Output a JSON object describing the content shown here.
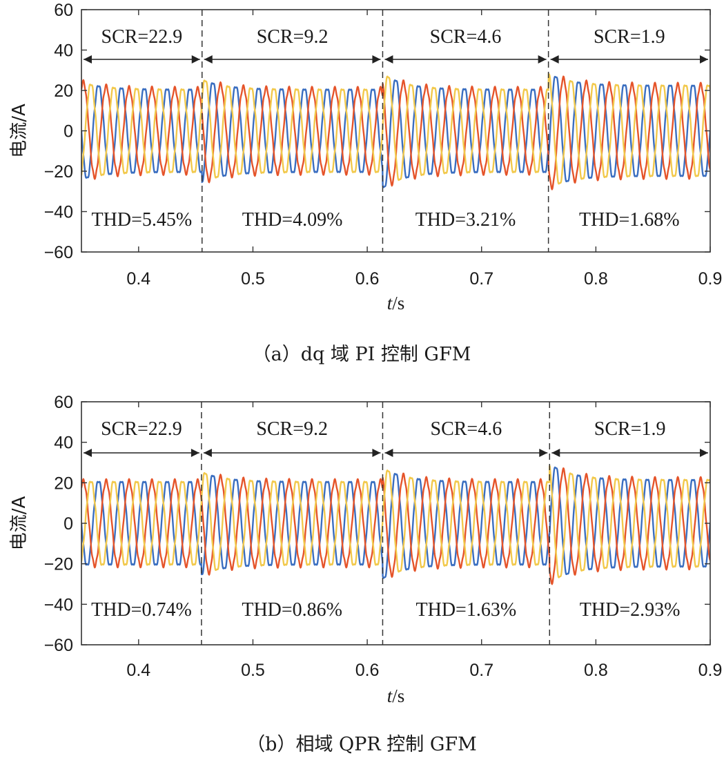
{
  "chart_data": [
    {
      "type": "line",
      "caption": "（a）dq 域 PI 控制 GFM",
      "xlabel_var": "t",
      "xlabel_unit": "/s",
      "ylabel": "电流/A",
      "xlim": [
        0.35,
        0.9
      ],
      "ylim": [
        -60,
        60
      ],
      "xticks": [
        0.4,
        0.5,
        0.6,
        0.7,
        0.8,
        0.9
      ],
      "xtick_labels": [
        "0.4",
        "0.5",
        "0.6",
        "0.7",
        "0.8",
        "0.9"
      ],
      "yticks": [
        60,
        40,
        20,
        0,
        -20,
        -40,
        -60
      ],
      "ytick_labels": [
        "60",
        "40",
        "20",
        "0",
        "−20",
        "−40",
        "−60"
      ],
      "boundaries": [
        0.4555,
        0.6135,
        0.7585
      ],
      "series": [
        {
          "name": "phase-blue",
          "color": "#3a6ec0",
          "phase_deg": 0
        },
        {
          "name": "phase-red",
          "color": "#e5542a",
          "phase_deg": -120
        },
        {
          "name": "phase-yellow",
          "color": "#f2c94c",
          "phase_deg": 120
        }
      ],
      "frequency_hz": 50,
      "segments": [
        {
          "scr_label": "SCR=22.9",
          "thd_label": "THD=5.45%",
          "x_start": 0.35,
          "x_end": 0.4555,
          "amplitude": 21,
          "transient_peak": 6
        },
        {
          "scr_label": "SCR=9.2",
          "thd_label": "THD=4.09%",
          "x_start": 0.4555,
          "x_end": 0.6135,
          "amplitude": 21,
          "transient_peak": 5
        },
        {
          "scr_label": "SCR=4.6",
          "thd_label": "THD=3.21%",
          "x_start": 0.6135,
          "x_end": 0.7585,
          "amplitude": 21,
          "transient_peak": 8
        },
        {
          "scr_label": "SCR=1.9",
          "thd_label": "THD=1.68%",
          "x_start": 0.7585,
          "x_end": 0.9,
          "amplitude": 23,
          "transient_peak": 6
        }
      ]
    },
    {
      "type": "line",
      "caption": "（b）相域 QPR 控制 GFM",
      "xlabel_var": "t",
      "xlabel_unit": "/s",
      "ylabel": "电流/A",
      "xlim": [
        0.35,
        0.9
      ],
      "ylim": [
        -60,
        60
      ],
      "xticks": [
        0.4,
        0.5,
        0.6,
        0.7,
        0.8,
        0.9
      ],
      "xtick_labels": [
        "0.4",
        "0.5",
        "0.6",
        "0.7",
        "0.8",
        "0.9"
      ],
      "yticks": [
        60,
        40,
        20,
        0,
        -20,
        -40,
        -60
      ],
      "ytick_labels": [
        "60",
        "40",
        "20",
        "0",
        "−20",
        "−40",
        "−60"
      ],
      "boundaries": [
        0.455,
        0.6135,
        0.7595
      ],
      "series": [
        {
          "name": "phase-blue",
          "color": "#3a6ec0",
          "phase_deg": 0
        },
        {
          "name": "phase-red",
          "color": "#e5542a",
          "phase_deg": -120
        },
        {
          "name": "phase-yellow",
          "color": "#f2c94c",
          "phase_deg": 120
        }
      ],
      "frequency_hz": 50,
      "segments": [
        {
          "scr_label": "SCR=22.9",
          "thd_label": "THD=0.74%",
          "x_start": 0.35,
          "x_end": 0.455,
          "amplitude": 21,
          "transient_peak": 0
        },
        {
          "scr_label": "SCR=9.2",
          "thd_label": "THD=0.86%",
          "x_start": 0.455,
          "x_end": 0.6135,
          "amplitude": 21,
          "transient_peak": 5
        },
        {
          "scr_label": "SCR=4.6",
          "thd_label": "THD=1.63%",
          "x_start": 0.6135,
          "x_end": 0.7595,
          "amplitude": 21,
          "transient_peak": 7
        },
        {
          "scr_label": "SCR=1.9",
          "thd_label": "THD=2.93%",
          "x_start": 0.7595,
          "x_end": 0.9,
          "amplitude": 22,
          "transient_peak": 8
        }
      ]
    }
  ]
}
